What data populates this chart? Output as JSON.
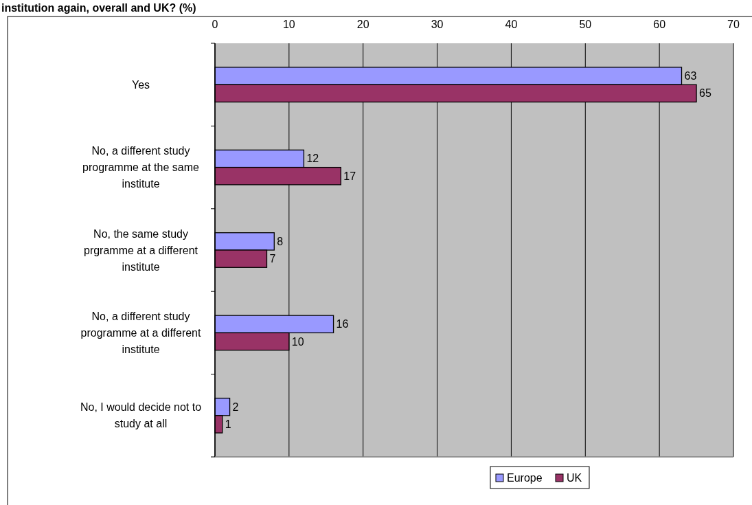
{
  "chart_data": {
    "type": "bar",
    "orientation": "horizontal",
    "title": "institution again, overall and UK? (%)",
    "categories": [
      "Yes",
      "No, a different study programme at the same institute",
      "No, the same study prgramme at a different institute",
      "No, a different study programme at a different institute",
      "No, I would decide not to study at all"
    ],
    "series": [
      {
        "name": "Europe",
        "color": "#9999ff",
        "values": [
          63,
          12,
          8,
          16,
          2
        ]
      },
      {
        "name": "UK",
        "color": "#993366",
        "values": [
          65,
          17,
          7,
          10,
          1
        ]
      }
    ],
    "xlim": [
      0,
      70
    ],
    "xticks": [
      0,
      10,
      20,
      30,
      40,
      50,
      60,
      70
    ],
    "grid": "x",
    "legend": "bottom",
    "data_labels": true
  }
}
